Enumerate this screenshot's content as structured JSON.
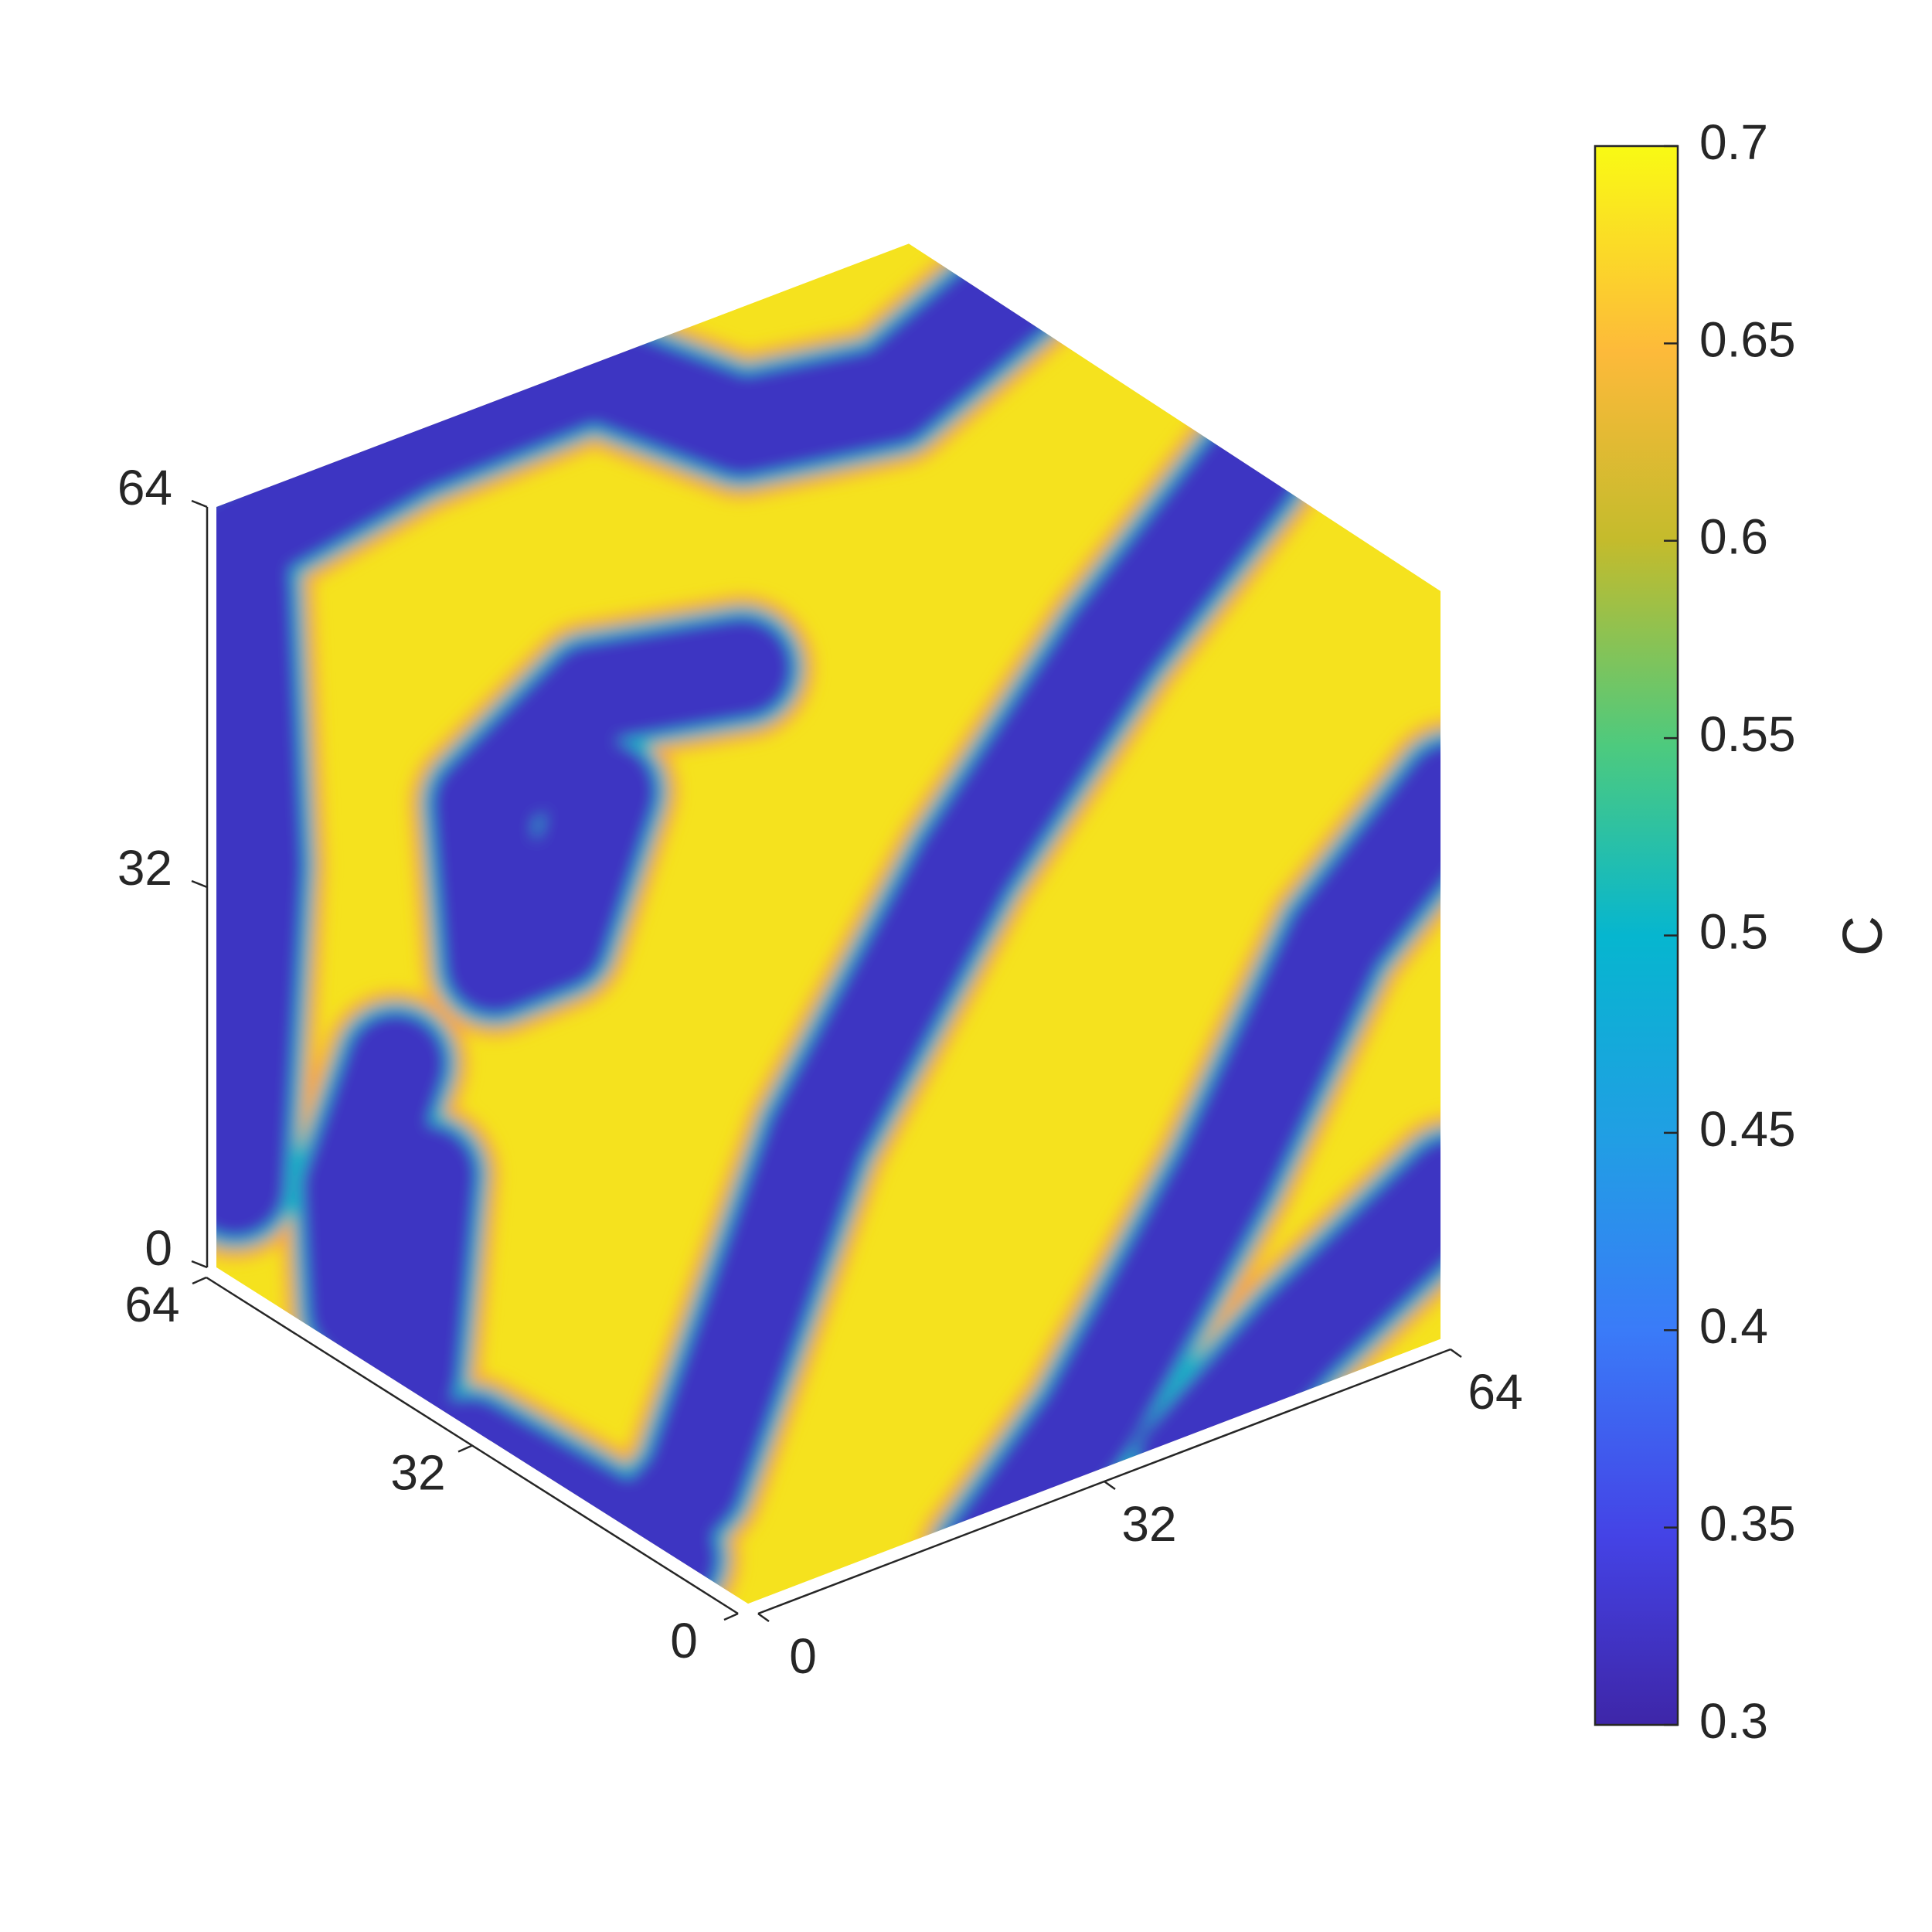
{
  "chart_data": {
    "type": "cube",
    "xlim": [
      0,
      64
    ],
    "xticks": [
      0,
      32,
      64
    ],
    "ylim": [
      0,
      64
    ],
    "yticks": [
      0,
      32,
      64
    ],
    "zlim": [
      0,
      64
    ],
    "zticks": [
      0,
      32,
      64
    ],
    "colorbar": {
      "label": "C",
      "clim": [
        0.3,
        0.7
      ],
      "ticks": [
        0.3,
        0.35,
        0.4,
        0.45,
        0.5,
        0.55,
        0.6,
        0.65,
        0.7
      ]
    }
  }
}
